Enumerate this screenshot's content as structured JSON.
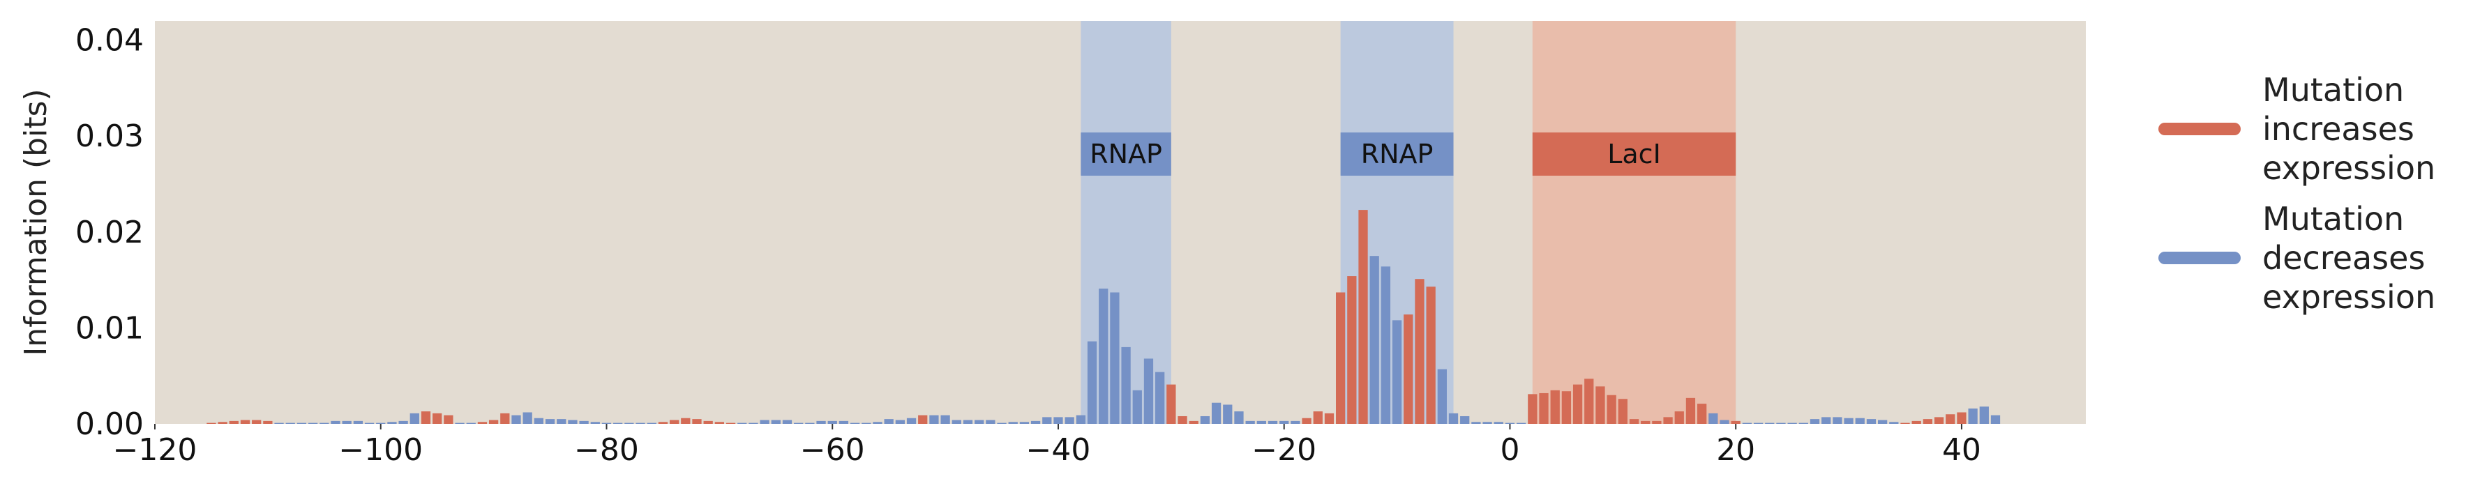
{
  "colors": {
    "background": "#e3dcd2",
    "increase": "#d46b55",
    "decrease": "#7591c6",
    "rnap_band": "#b9c7de",
    "laci_band": "#e9bba9"
  },
  "chart_data": {
    "type": "bar",
    "xlim": [
      -120,
      51
    ],
    "ylim": [
      0,
      0.042
    ],
    "xticks": [
      -120,
      -100,
      -80,
      -60,
      -40,
      -20,
      0,
      20,
      40
    ],
    "xtick_labels": [
      "−120",
      "−100",
      "−80",
      "−60",
      "−40",
      "−20",
      "0",
      "20",
      "40"
    ],
    "yticks": [
      0,
      0.01,
      0.02,
      0.03,
      0.04
    ],
    "ytick_labels": [
      "0.00",
      "0.01",
      "0.02",
      "0.03",
      "0.04"
    ],
    "ylabel": "Information (bits)",
    "xlabel": "",
    "grid": false,
    "legend_position": "right",
    "legend": [
      {
        "label_lines": [
          "Mutation",
          "increases",
          "expression"
        ],
        "color_key": "increase"
      },
      {
        "label_lines": [
          "Mutation",
          "decreases",
          "expression"
        ],
        "color_key": "decrease"
      }
    ],
    "regions": [
      {
        "label": "RNAP",
        "start": -38,
        "end": -30,
        "kind": "rnap"
      },
      {
        "label": "RNAP",
        "start": -15,
        "end": -5,
        "kind": "rnap"
      },
      {
        "label": "LacI",
        "start": 2,
        "end": 20,
        "kind": "laci"
      }
    ],
    "bars": [
      {
        "x": -115,
        "value": 0.0001,
        "effect": "increase"
      },
      {
        "x": -114,
        "value": 0.0002,
        "effect": "increase"
      },
      {
        "x": -113,
        "value": 0.0003,
        "effect": "increase"
      },
      {
        "x": -112,
        "value": 0.0004,
        "effect": "increase"
      },
      {
        "x": -111,
        "value": 0.0004,
        "effect": "increase"
      },
      {
        "x": -110,
        "value": 0.0003,
        "effect": "increase"
      },
      {
        "x": -109,
        "value": 0.0001,
        "effect": "decrease"
      },
      {
        "x": -108,
        "value": 0.0001,
        "effect": "decrease"
      },
      {
        "x": -107,
        "value": 0.0001,
        "effect": "decrease"
      },
      {
        "x": -106,
        "value": 0.0001,
        "effect": "decrease"
      },
      {
        "x": -105,
        "value": 0.0001,
        "effect": "decrease"
      },
      {
        "x": -104,
        "value": 0.0003,
        "effect": "decrease"
      },
      {
        "x": -103,
        "value": 0.0003,
        "effect": "decrease"
      },
      {
        "x": -102,
        "value": 0.0003,
        "effect": "decrease"
      },
      {
        "x": -101,
        "value": 0.0001,
        "effect": "decrease"
      },
      {
        "x": -100,
        "value": 0.0001,
        "effect": "decrease"
      },
      {
        "x": -99,
        "value": 0.0002,
        "effect": "decrease"
      },
      {
        "x": -98,
        "value": 0.0003,
        "effect": "decrease"
      },
      {
        "x": -97,
        "value": 0.0011,
        "effect": "decrease"
      },
      {
        "x": -96,
        "value": 0.0013,
        "effect": "increase"
      },
      {
        "x": -95,
        "value": 0.0011,
        "effect": "increase"
      },
      {
        "x": -94,
        "value": 0.0009,
        "effect": "increase"
      },
      {
        "x": -93,
        "value": 0.0001,
        "effect": "decrease"
      },
      {
        "x": -92,
        "value": 0.0001,
        "effect": "decrease"
      },
      {
        "x": -91,
        "value": 0.0002,
        "effect": "increase"
      },
      {
        "x": -90,
        "value": 0.0004,
        "effect": "increase"
      },
      {
        "x": -89,
        "value": 0.0011,
        "effect": "increase"
      },
      {
        "x": -88,
        "value": 0.0009,
        "effect": "decrease"
      },
      {
        "x": -87,
        "value": 0.0012,
        "effect": "decrease"
      },
      {
        "x": -86,
        "value": 0.0006,
        "effect": "decrease"
      },
      {
        "x": -85,
        "value": 0.0005,
        "effect": "decrease"
      },
      {
        "x": -84,
        "value": 0.0005,
        "effect": "decrease"
      },
      {
        "x": -83,
        "value": 0.0004,
        "effect": "decrease"
      },
      {
        "x": -82,
        "value": 0.0003,
        "effect": "decrease"
      },
      {
        "x": -81,
        "value": 0.0002,
        "effect": "decrease"
      },
      {
        "x": -80,
        "value": 0.0001,
        "effect": "decrease"
      },
      {
        "x": -79,
        "value": 0.0001,
        "effect": "decrease"
      },
      {
        "x": -78,
        "value": 0.0001,
        "effect": "decrease"
      },
      {
        "x": -77,
        "value": 0.0001,
        "effect": "decrease"
      },
      {
        "x": -76,
        "value": 0.0001,
        "effect": "decrease"
      },
      {
        "x": -75,
        "value": 0.0002,
        "effect": "increase"
      },
      {
        "x": -74,
        "value": 0.0004,
        "effect": "increase"
      },
      {
        "x": -73,
        "value": 0.0006,
        "effect": "increase"
      },
      {
        "x": -72,
        "value": 0.0005,
        "effect": "increase"
      },
      {
        "x": -71,
        "value": 0.0003,
        "effect": "increase"
      },
      {
        "x": -70,
        "value": 0.0002,
        "effect": "increase"
      },
      {
        "x": -69,
        "value": 0.0001,
        "effect": "increase"
      },
      {
        "x": -68,
        "value": 0.0001,
        "effect": "decrease"
      },
      {
        "x": -67,
        "value": 0.0001,
        "effect": "decrease"
      },
      {
        "x": -66,
        "value": 0.0004,
        "effect": "decrease"
      },
      {
        "x": -65,
        "value": 0.0004,
        "effect": "decrease"
      },
      {
        "x": -64,
        "value": 0.0004,
        "effect": "decrease"
      },
      {
        "x": -63,
        "value": 0.0001,
        "effect": "decrease"
      },
      {
        "x": -62,
        "value": 0.0001,
        "effect": "decrease"
      },
      {
        "x": -61,
        "value": 0.0003,
        "effect": "decrease"
      },
      {
        "x": -60,
        "value": 0.0003,
        "effect": "decrease"
      },
      {
        "x": -59,
        "value": 0.0003,
        "effect": "decrease"
      },
      {
        "x": -58,
        "value": 0.0001,
        "effect": "decrease"
      },
      {
        "x": -57,
        "value": 0.0001,
        "effect": "decrease"
      },
      {
        "x": -56,
        "value": 0.0002,
        "effect": "decrease"
      },
      {
        "x": -55,
        "value": 0.0005,
        "effect": "decrease"
      },
      {
        "x": -54,
        "value": 0.0004,
        "effect": "decrease"
      },
      {
        "x": -53,
        "value": 0.0006,
        "effect": "decrease"
      },
      {
        "x": -52,
        "value": 0.0009,
        "effect": "increase"
      },
      {
        "x": -51,
        "value": 0.0009,
        "effect": "decrease"
      },
      {
        "x": -50,
        "value": 0.0009,
        "effect": "decrease"
      },
      {
        "x": -49,
        "value": 0.0004,
        "effect": "decrease"
      },
      {
        "x": -48,
        "value": 0.0004,
        "effect": "decrease"
      },
      {
        "x": -47,
        "value": 0.0004,
        "effect": "decrease"
      },
      {
        "x": -46,
        "value": 0.0004,
        "effect": "decrease"
      },
      {
        "x": -45,
        "value": 0.0001,
        "effect": "decrease"
      },
      {
        "x": -44,
        "value": 0.0002,
        "effect": "decrease"
      },
      {
        "x": -43,
        "value": 0.0002,
        "effect": "decrease"
      },
      {
        "x": -42,
        "value": 0.0003,
        "effect": "decrease"
      },
      {
        "x": -41,
        "value": 0.0007,
        "effect": "decrease"
      },
      {
        "x": -40,
        "value": 0.0007,
        "effect": "decrease"
      },
      {
        "x": -39,
        "value": 0.0007,
        "effect": "decrease"
      },
      {
        "x": -38,
        "value": 0.0009,
        "effect": "decrease"
      },
      {
        "x": -37,
        "value": 0.0086,
        "effect": "decrease"
      },
      {
        "x": -36,
        "value": 0.0141,
        "effect": "decrease"
      },
      {
        "x": -35,
        "value": 0.0137,
        "effect": "decrease"
      },
      {
        "x": -34,
        "value": 0.008,
        "effect": "decrease"
      },
      {
        "x": -33,
        "value": 0.0035,
        "effect": "decrease"
      },
      {
        "x": -32,
        "value": 0.0068,
        "effect": "decrease"
      },
      {
        "x": -31,
        "value": 0.0054,
        "effect": "decrease"
      },
      {
        "x": -30,
        "value": 0.0041,
        "effect": "increase"
      },
      {
        "x": -29,
        "value": 0.0008,
        "effect": "increase"
      },
      {
        "x": -28,
        "value": 0.0003,
        "effect": "increase"
      },
      {
        "x": -27,
        "value": 0.0008,
        "effect": "decrease"
      },
      {
        "x": -26,
        "value": 0.0022,
        "effect": "decrease"
      },
      {
        "x": -25,
        "value": 0.002,
        "effect": "decrease"
      },
      {
        "x": -24,
        "value": 0.0013,
        "effect": "decrease"
      },
      {
        "x": -23,
        "value": 0.0003,
        "effect": "decrease"
      },
      {
        "x": -22,
        "value": 0.0003,
        "effect": "decrease"
      },
      {
        "x": -21,
        "value": 0.0003,
        "effect": "decrease"
      },
      {
        "x": -20,
        "value": 0.0003,
        "effect": "decrease"
      },
      {
        "x": -19,
        "value": 0.0003,
        "effect": "decrease"
      },
      {
        "x": -18,
        "value": 0.0006,
        "effect": "increase"
      },
      {
        "x": -17,
        "value": 0.0013,
        "effect": "increase"
      },
      {
        "x": -16,
        "value": 0.0011,
        "effect": "increase"
      },
      {
        "x": -15,
        "value": 0.0137,
        "effect": "increase"
      },
      {
        "x": -14,
        "value": 0.0154,
        "effect": "increase"
      },
      {
        "x": -13,
        "value": 0.0223,
        "effect": "increase"
      },
      {
        "x": -12,
        "value": 0.0175,
        "effect": "decrease"
      },
      {
        "x": -11,
        "value": 0.0164,
        "effect": "decrease"
      },
      {
        "x": -10,
        "value": 0.0108,
        "effect": "decrease"
      },
      {
        "x": -9,
        "value": 0.0114,
        "effect": "increase"
      },
      {
        "x": -8,
        "value": 0.0151,
        "effect": "increase"
      },
      {
        "x": -7,
        "value": 0.0143,
        "effect": "increase"
      },
      {
        "x": -6,
        "value": 0.0057,
        "effect": "decrease"
      },
      {
        "x": -5,
        "value": 0.0011,
        "effect": "decrease"
      },
      {
        "x": -4,
        "value": 0.0008,
        "effect": "decrease"
      },
      {
        "x": -3,
        "value": 0.0002,
        "effect": "decrease"
      },
      {
        "x": -2,
        "value": 0.0002,
        "effect": "decrease"
      },
      {
        "x": -1,
        "value": 0.0002,
        "effect": "decrease"
      },
      {
        "x": 0,
        "value": 0.0001,
        "effect": "decrease"
      },
      {
        "x": 1,
        "value": 0.0001,
        "effect": "decrease"
      },
      {
        "x": 2,
        "value": 0.0031,
        "effect": "increase"
      },
      {
        "x": 3,
        "value": 0.0032,
        "effect": "increase"
      },
      {
        "x": 4,
        "value": 0.0035,
        "effect": "increase"
      },
      {
        "x": 5,
        "value": 0.0034,
        "effect": "increase"
      },
      {
        "x": 6,
        "value": 0.0041,
        "effect": "increase"
      },
      {
        "x": 7,
        "value": 0.0047,
        "effect": "increase"
      },
      {
        "x": 8,
        "value": 0.0039,
        "effect": "increase"
      },
      {
        "x": 9,
        "value": 0.003,
        "effect": "increase"
      },
      {
        "x": 10,
        "value": 0.0026,
        "effect": "increase"
      },
      {
        "x": 11,
        "value": 0.0005,
        "effect": "increase"
      },
      {
        "x": 12,
        "value": 0.0003,
        "effect": "increase"
      },
      {
        "x": 13,
        "value": 0.0003,
        "effect": "increase"
      },
      {
        "x": 14,
        "value": 0.0007,
        "effect": "increase"
      },
      {
        "x": 15,
        "value": 0.0013,
        "effect": "increase"
      },
      {
        "x": 16,
        "value": 0.0027,
        "effect": "increase"
      },
      {
        "x": 17,
        "value": 0.0021,
        "effect": "increase"
      },
      {
        "x": 18,
        "value": 0.0011,
        "effect": "decrease"
      },
      {
        "x": 19,
        "value": 0.0004,
        "effect": "decrease"
      },
      {
        "x": 20,
        "value": 0.0003,
        "effect": "increase"
      },
      {
        "x": 21,
        "value": 0.0001,
        "effect": "decrease"
      },
      {
        "x": 22,
        "value": 0.0001,
        "effect": "decrease"
      },
      {
        "x": 23,
        "value": 0.0001,
        "effect": "decrease"
      },
      {
        "x": 24,
        "value": 0.0001,
        "effect": "decrease"
      },
      {
        "x": 25,
        "value": 0.0001,
        "effect": "decrease"
      },
      {
        "x": 26,
        "value": 0.0001,
        "effect": "decrease"
      },
      {
        "x": 27,
        "value": 0.0005,
        "effect": "decrease"
      },
      {
        "x": 28,
        "value": 0.0007,
        "effect": "decrease"
      },
      {
        "x": 29,
        "value": 0.0007,
        "effect": "decrease"
      },
      {
        "x": 30,
        "value": 0.0006,
        "effect": "decrease"
      },
      {
        "x": 31,
        "value": 0.0006,
        "effect": "decrease"
      },
      {
        "x": 32,
        "value": 0.0005,
        "effect": "decrease"
      },
      {
        "x": 33,
        "value": 0.0004,
        "effect": "decrease"
      },
      {
        "x": 34,
        "value": 0.0002,
        "effect": "decrease"
      },
      {
        "x": 35,
        "value": 0.0001,
        "effect": "increase"
      },
      {
        "x": 36,
        "value": 0.0003,
        "effect": "increase"
      },
      {
        "x": 37,
        "value": 0.0005,
        "effect": "increase"
      },
      {
        "x": 38,
        "value": 0.0007,
        "effect": "increase"
      },
      {
        "x": 39,
        "value": 0.001,
        "effect": "increase"
      },
      {
        "x": 40,
        "value": 0.0012,
        "effect": "increase"
      },
      {
        "x": 41,
        "value": 0.0016,
        "effect": "decrease"
      },
      {
        "x": 42,
        "value": 0.0018,
        "effect": "decrease"
      },
      {
        "x": 43,
        "value": 0.0009,
        "effect": "decrease"
      }
    ]
  }
}
